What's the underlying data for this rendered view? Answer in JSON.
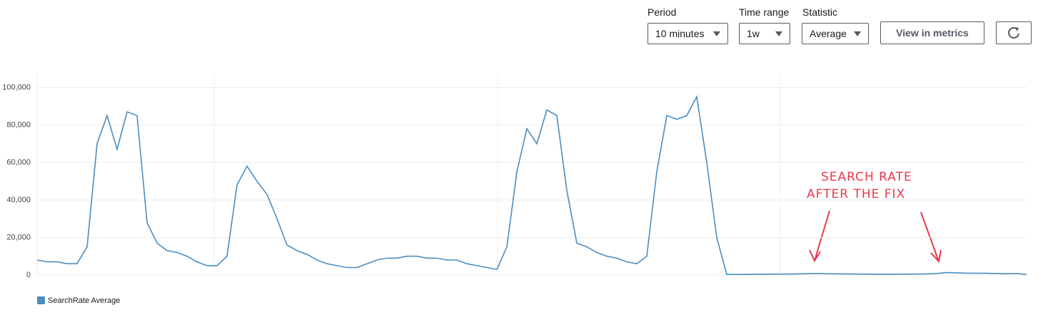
{
  "controls": {
    "period_label": "Period",
    "period_value": "10 minutes",
    "range_label": "Time range",
    "range_value": "1w",
    "statistic_label": "Statistic",
    "statistic_value": "Average",
    "button": "View in metrics"
  },
  "chart_data": {
    "type": "line",
    "annotations": [
      "SEARCH RATE",
      "AFTER THE FIX"
    ],
    "ylim": [
      0,
      107000
    ],
    "yticks": [
      0,
      {
        "value": 20000,
        "label": "20,000"
      },
      {
        "value": 40000,
        "label": "40,000"
      },
      {
        "value": 60000,
        "label": "60,000"
      },
      {
        "value": 80000,
        "label": "80,000"
      },
      {
        "value": 100000,
        "label": "100,000"
      }
    ],
    "grid": true,
    "legend": "bottom-left",
    "series": [
      {
        "name": "SearchRate Average",
        "color": "#4a8dc2",
        "values": [
          8000,
          7000,
          7000,
          6000,
          6000,
          15000,
          70000,
          85000,
          67000,
          87000,
          85000,
          28000,
          17000,
          13000,
          12000,
          10000,
          7000,
          5000,
          5000,
          10000,
          48000,
          58000,
          50000,
          43000,
          30000,
          16000,
          13000,
          11000,
          8000,
          6000,
          5000,
          4000,
          4000,
          6000,
          8000,
          9000,
          9000,
          10000,
          10000,
          9000,
          9000,
          8000,
          8000,
          6000,
          5000,
          4000,
          3000,
          15000,
          55000,
          78000,
          70000,
          88000,
          85000,
          45000,
          17000,
          15000,
          12000,
          10000,
          9000,
          7000,
          6000,
          10000,
          55000,
          85000,
          83000,
          85000,
          95000,
          60000,
          20000,
          300,
          300,
          300,
          400,
          400,
          500,
          500,
          600,
          700,
          800,
          700,
          600,
          600,
          500,
          500,
          400,
          400,
          400,
          500,
          500,
          600,
          800,
          1300,
          1100,
          1000,
          900,
          900,
          800,
          700,
          800,
          300
        ]
      }
    ]
  }
}
